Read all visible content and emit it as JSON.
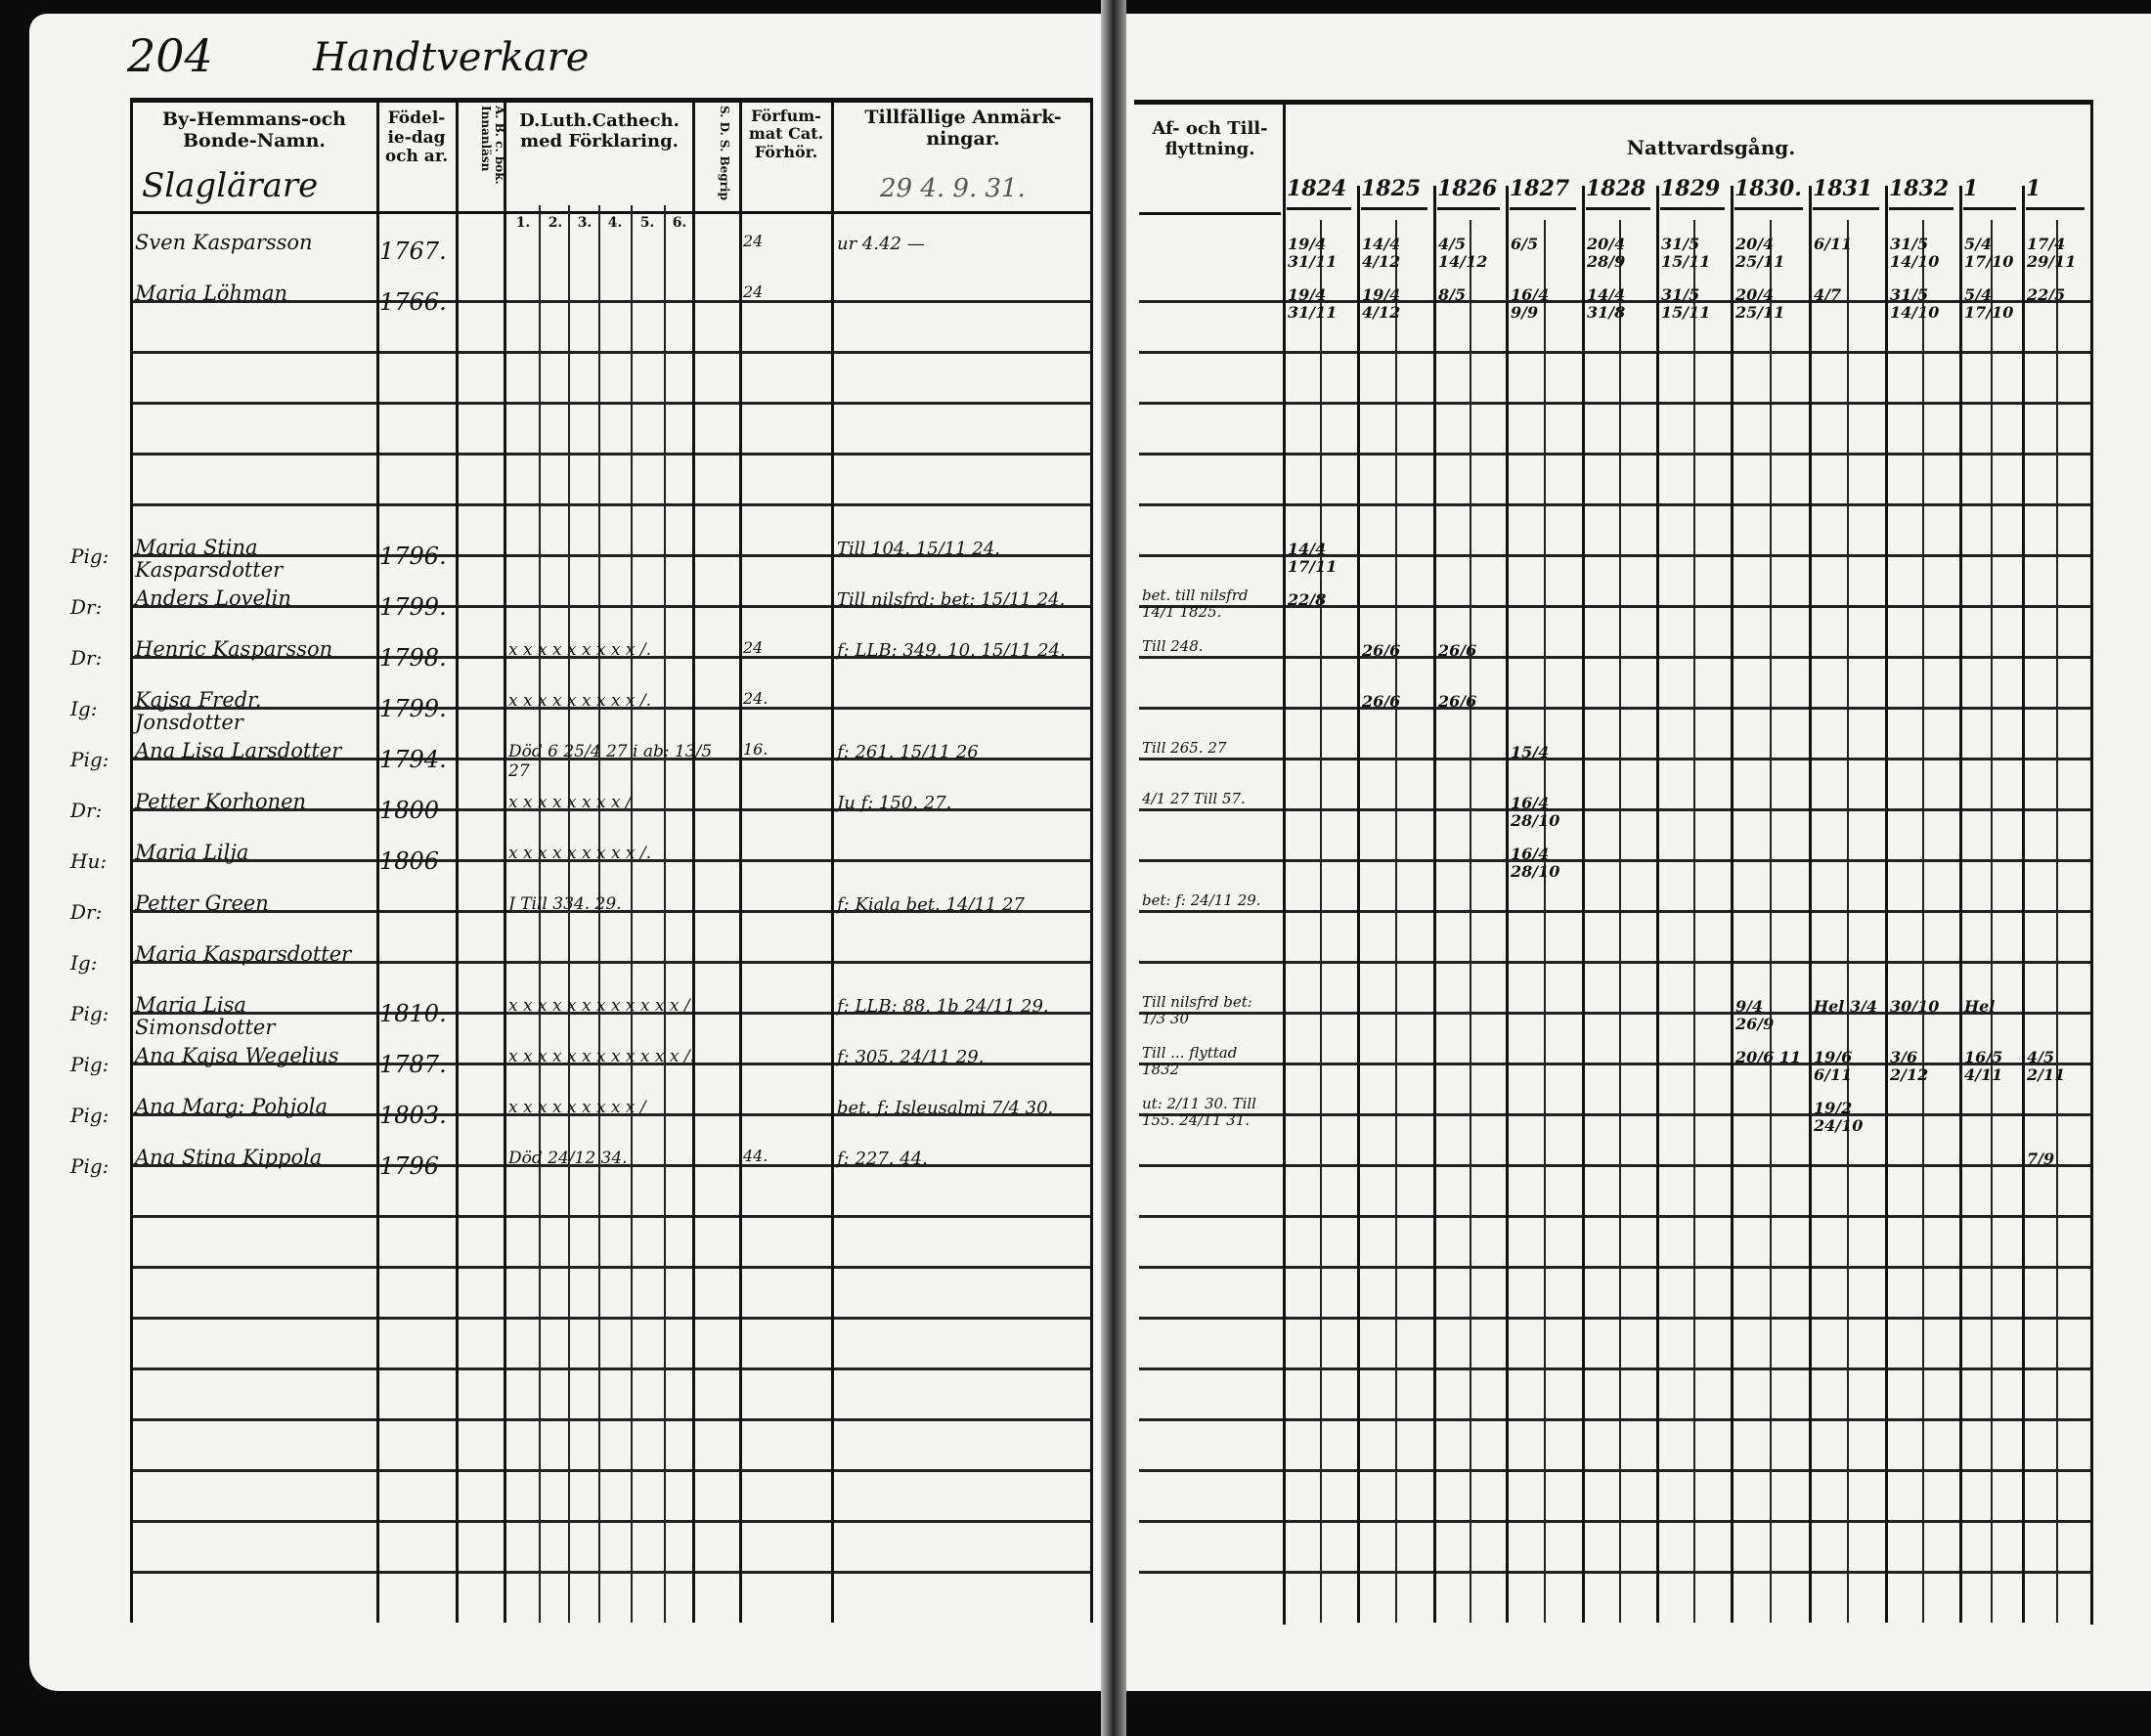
{
  "left_page": {
    "page_number": "204",
    "section_title": "Handtverkare",
    "headers": {
      "name": "By-Hemmans-och Bonde-Namn.",
      "birth": "Födel-ie-dag och ar.",
      "abc": "A. B. c. bok. Innanläsn",
      "catechism": "D.Luth.Cathech. med Förklaring.",
      "catechism_cols": [
        "1.",
        "2.",
        "3.",
        "4.",
        "5.",
        "6."
      ],
      "sd": "S. D. S. Begrip",
      "forfum": "Förfum-mat Cat. Förhör.",
      "remarks": "Tillfällige Anmärk-ningar."
    },
    "place_name": "Slaglärare",
    "header_note": "29 4. 9. 31.",
    "rows": [
      {
        "prefix": "",
        "name": "Sven Kasparsson",
        "birth": "1767.",
        "marks": "",
        "forfum": "24",
        "remarks": "ur 4.42 —"
      },
      {
        "prefix": "",
        "name": "Maria Löhman",
        "birth": "1766.",
        "marks": "",
        "forfum": "24",
        "remarks": ""
      },
      {
        "prefix": "",
        "name": "",
        "birth": "",
        "marks": "",
        "forfum": "",
        "remarks": ""
      },
      {
        "prefix": "",
        "name": "",
        "birth": "",
        "marks": "",
        "forfum": "",
        "remarks": ""
      },
      {
        "prefix": "",
        "name": "",
        "birth": "",
        "marks": "",
        "forfum": "",
        "remarks": ""
      },
      {
        "prefix": "",
        "name": "",
        "birth": "",
        "marks": "",
        "forfum": "",
        "remarks": ""
      },
      {
        "prefix": "Pig:",
        "name": "Maria Stina Kasparsdotter",
        "birth": "1796.",
        "marks": "",
        "forfum": "",
        "remarks": "Till 104. 15/11 24."
      },
      {
        "prefix": "Dr:",
        "name": "Anders Lovelin",
        "birth": "1799.",
        "marks": "",
        "forfum": "",
        "remarks": "Till nilsfrd: bet: 15/11 24."
      },
      {
        "prefix": "Dr:",
        "name": "Henric Kasparsson",
        "birth": "1798.",
        "marks": "x x  x x x x  x  x  x  /.",
        "forfum": "24",
        "remarks": "f: LLB: 349. 10. 15/11 24."
      },
      {
        "prefix": "Ig:",
        "name": "Kajsa Fredr. Jonsdotter",
        "birth": "1799.",
        "marks": "x x  x x x x  x  x  x  /.",
        "forfum": "24.",
        "remarks": ""
      },
      {
        "prefix": "Pig:",
        "name": "Ana Lisa Larsdotter",
        "birth": "1794.",
        "marks": "Död 6 25/4 27 i ab: 13/5 27",
        "forfum": "16.",
        "remarks": "f: 261. 15/11 26"
      },
      {
        "prefix": "Dr:",
        "name": "Petter Korhonen",
        "birth": "1800",
        "marks": "x x  x x x x  x  x  /",
        "forfum": "",
        "remarks": "Ju f: 150. 27."
      },
      {
        "prefix": "Hu:",
        "name": "Maria Lilja",
        "birth": "1806",
        "marks": "x x  x x x x  x  x  x  /.",
        "forfum": "",
        "remarks": ""
      },
      {
        "prefix": "Dr:",
        "name": "Petter Green",
        "birth": "",
        "marks": "J Till 334. 29.",
        "forfum": "",
        "remarks": "f: Kiala bet. 14/11 27"
      },
      {
        "prefix": "Ig:",
        "name": "Maria Kasparsdotter",
        "birth": "",
        "marks": "",
        "forfum": "",
        "remarks": ""
      },
      {
        "prefix": "Pig:",
        "name": "Maria Lisa Simonsdotter",
        "birth": "1810.",
        "marks": "x x  x x x x  x x  x x  x x  /",
        "forfum": "",
        "remarks": "f: LLB: 88. 1b 24/11 29."
      },
      {
        "prefix": "Pig:",
        "name": "Ana Kajsa Wegelius",
        "birth": "1787.",
        "marks": "x x  x x x x  x x  x x x x  /.",
        "forfum": "",
        "remarks": "f: 305. 24/11 29."
      },
      {
        "prefix": "Pig:",
        "name": "Ana Marg: Pohjola",
        "birth": "1803.",
        "marks": "x x  x x  x x x  x  x  /",
        "forfum": "",
        "remarks": "bet. f: Isleusalmi 7/4 30."
      },
      {
        "prefix": "Pig:",
        "name": "Ana Stina Kippola",
        "birth": "1796",
        "marks": "Död 24/12 34.",
        "forfum": "44.",
        "remarks": "f: 227. 44."
      }
    ]
  },
  "right_page": {
    "headers": {
      "moving": "Af- och Till-flyttning.",
      "communion": "Nattvardsgång."
    },
    "years": [
      "1824",
      "1825",
      "1826",
      "1827",
      "1828",
      "1829",
      "1830.",
      "1831",
      "1832",
      "1",
      "1"
    ],
    "moving_entries": [
      {
        "row": 7,
        "text": "bet. till nilsfrd 14/1 1825."
      },
      {
        "row": 8,
        "text": "Till 248."
      },
      {
        "row": 10,
        "text": "Till 265. 27"
      },
      {
        "row": 11,
        "text": "4/1 27 Till 57."
      },
      {
        "row": 13,
        "text": "bet: f: 24/11 29."
      },
      {
        "row": 15,
        "text": "Till nilsfrd bet: 1/3 30"
      },
      {
        "row": 16,
        "text": "Till ... flyttad 1832"
      },
      {
        "row": 17,
        "text": "ut: 2/11 30.  Till 155. 24/11 31."
      }
    ],
    "communion_entries": [
      {
        "row": 0,
        "col": 0,
        "text": "19/4 31/11"
      },
      {
        "row": 0,
        "col": 1,
        "text": "14/4 4/12"
      },
      {
        "row": 0,
        "col": 2,
        "text": "4/5 14/12"
      },
      {
        "row": 0,
        "col": 3,
        "text": "6/5"
      },
      {
        "row": 0,
        "col": 4,
        "text": "20/4 28/9"
      },
      {
        "row": 0,
        "col": 5,
        "text": "31/5 15/11"
      },
      {
        "row": 0,
        "col": 6,
        "text": "20/4 25/11"
      },
      {
        "row": 0,
        "col": 7,
        "text": "6/11"
      },
      {
        "row": 0,
        "col": 8,
        "text": "31/5 14/10"
      },
      {
        "row": 0,
        "col": 9,
        "text": "5/4 17/10"
      },
      {
        "row": 0,
        "col": 10,
        "text": "17/4 29/11"
      },
      {
        "row": 1,
        "col": 0,
        "text": "19/4 31/11"
      },
      {
        "row": 1,
        "col": 1,
        "text": "19/4 4/12"
      },
      {
        "row": 1,
        "col": 2,
        "text": "8/5"
      },
      {
        "row": 1,
        "col": 3,
        "text": "16/4 9/9"
      },
      {
        "row": 1,
        "col": 4,
        "text": "14/4 31/8"
      },
      {
        "row": 1,
        "col": 5,
        "text": "31/5 15/11"
      },
      {
        "row": 1,
        "col": 6,
        "text": "20/4 25/11"
      },
      {
        "row": 1,
        "col": 7,
        "text": "4/7"
      },
      {
        "row": 1,
        "col": 8,
        "text": "31/5 14/10"
      },
      {
        "row": 1,
        "col": 9,
        "text": "5/4 17/10"
      },
      {
        "row": 1,
        "col": 10,
        "text": "22/5"
      },
      {
        "row": 6,
        "col": 0,
        "text": "14/4 17/11"
      },
      {
        "row": 7,
        "col": 0,
        "text": "22/8"
      },
      {
        "row": 8,
        "col": 1,
        "text": "26/6"
      },
      {
        "row": 8,
        "col": 2,
        "text": "26/6"
      },
      {
        "row": 9,
        "col": 1,
        "text": "26/6"
      },
      {
        "row": 9,
        "col": 2,
        "text": "26/6"
      },
      {
        "row": 10,
        "col": 3,
        "text": "15/4"
      },
      {
        "row": 11,
        "col": 3,
        "text": "16/4 28/10"
      },
      {
        "row": 12,
        "col": 3,
        "text": "16/4 28/10"
      },
      {
        "row": 15,
        "col": 6,
        "text": "9/4 26/9"
      },
      {
        "row": 15,
        "col": 7,
        "text": "Hel 3/4"
      },
      {
        "row": 15,
        "col": 8,
        "text": "30/10"
      },
      {
        "row": 15,
        "col": 9,
        "text": "Hel"
      },
      {
        "row": 16,
        "col": 6,
        "text": "20/6 11"
      },
      {
        "row": 16,
        "col": 7,
        "text": "19/6 6/11"
      },
      {
        "row": 16,
        "col": 8,
        "text": "3/6 2/12"
      },
      {
        "row": 16,
        "col": 9,
        "text": "16/5 4/11"
      },
      {
        "row": 16,
        "col": 10,
        "text": "4/5 2/11"
      },
      {
        "row": 17,
        "col": 7,
        "text": "19/2 24/10"
      },
      {
        "row": 18,
        "col": 10,
        "text": "7/9"
      }
    ]
  }
}
